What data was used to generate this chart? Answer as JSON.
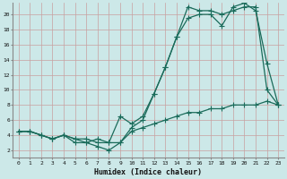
{
  "xlabel": "Humidex (Indice chaleur)",
  "xlim": [
    -0.5,
    23.5
  ],
  "ylim": [
    1,
    21.5
  ],
  "yticks": [
    2,
    4,
    6,
    8,
    10,
    12,
    14,
    16,
    18,
    20
  ],
  "xticks": [
    0,
    1,
    2,
    3,
    4,
    5,
    6,
    7,
    8,
    9,
    10,
    11,
    12,
    13,
    14,
    15,
    16,
    17,
    18,
    19,
    20,
    21,
    22,
    23
  ],
  "bg_color": "#cce8e8",
  "grid_color": "#aacece",
  "line_color": "#1a6b5a",
  "series1_x": [
    0,
    1,
    2,
    3,
    4,
    5,
    6,
    7,
    8,
    9,
    10,
    11,
    12,
    13,
    14,
    15,
    16,
    17,
    18,
    19,
    20,
    21,
    22,
    23
  ],
  "series1_y": [
    4.5,
    4.5,
    4.0,
    3.5,
    4.0,
    3.0,
    3.0,
    2.5,
    2.0,
    3.0,
    5.0,
    6.0,
    9.5,
    13.0,
    17.0,
    21.0,
    20.5,
    20.5,
    20.0,
    20.5,
    21.0,
    21.0,
    10.0,
    8.0
  ],
  "series2_x": [
    0,
    1,
    2,
    3,
    4,
    5,
    6,
    7,
    8,
    9,
    10,
    11,
    12,
    13,
    14,
    15,
    16,
    17,
    18,
    19,
    20,
    21,
    22,
    23
  ],
  "series2_y": [
    4.5,
    4.5,
    4.0,
    3.5,
    4.0,
    3.5,
    3.0,
    3.5,
    3.0,
    6.5,
    5.5,
    6.5,
    9.5,
    13.0,
    17.0,
    19.5,
    20.0,
    20.0,
    18.5,
    21.0,
    21.5,
    20.5,
    13.5,
    8.0
  ],
  "series3_x": [
    0,
    1,
    2,
    3,
    4,
    5,
    6,
    7,
    8,
    9,
    10,
    11,
    12,
    13,
    14,
    15,
    16,
    17,
    18,
    19,
    20,
    21,
    22,
    23
  ],
  "series3_y": [
    4.5,
    4.5,
    4.0,
    3.5,
    4.0,
    3.5,
    3.5,
    3.0,
    3.0,
    3.0,
    4.5,
    5.0,
    5.5,
    6.0,
    6.5,
    7.0,
    7.0,
    7.5,
    7.5,
    8.0,
    8.0,
    8.0,
    8.5,
    8.0
  ]
}
